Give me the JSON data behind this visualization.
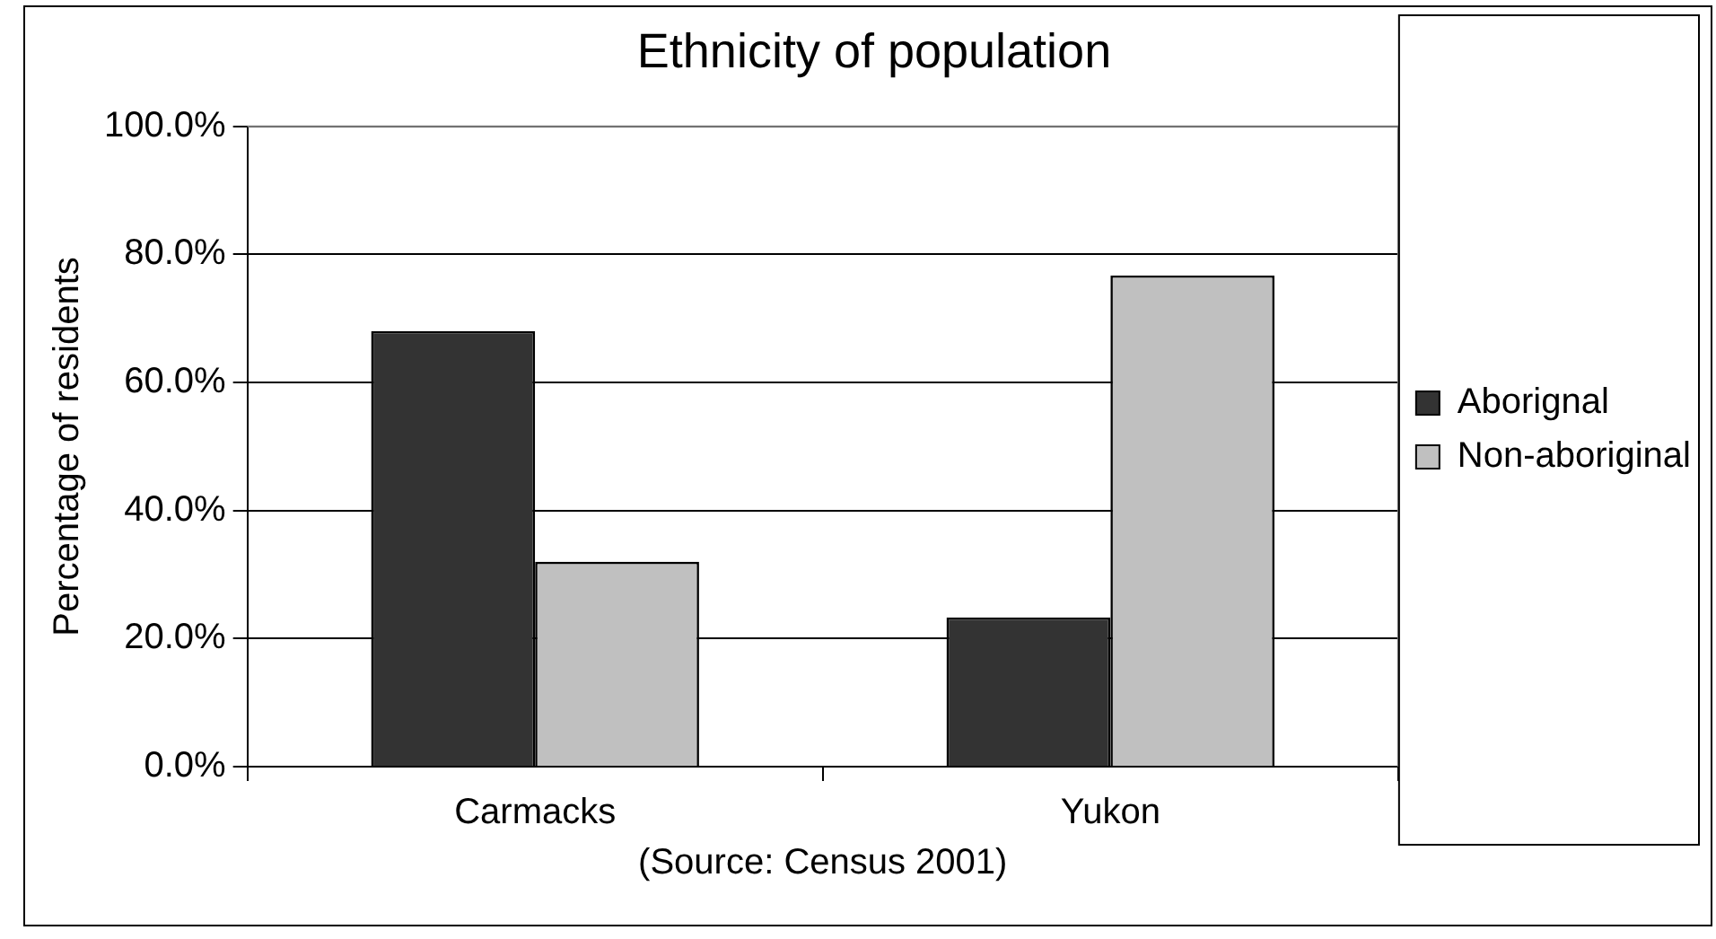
{
  "chart_data": {
    "type": "bar",
    "title": "Ethnicity of population",
    "ylabel": "Percentage of residents",
    "categories": [
      "Carmacks",
      "Yukon"
    ],
    "series": [
      {
        "name": "Aborignal",
        "color": "#333333",
        "values": [
          68,
          23.3
        ]
      },
      {
        "name": "Non-aboriginal",
        "color": "#c0c0c0",
        "values": [
          32,
          76.7
        ]
      }
    ],
    "ylim": [
      0,
      100
    ],
    "yticks": [
      {
        "value": 0,
        "label": "0.0%"
      },
      {
        "value": 20,
        "label": "20.0%"
      },
      {
        "value": 40,
        "label": "40.0%"
      },
      {
        "value": 60,
        "label": "60.0%"
      },
      {
        "value": 80,
        "label": "80.0%"
      },
      {
        "value": 100,
        "label": "100.0%"
      }
    ],
    "grid": "y",
    "legend": "right",
    "annotations": [
      "(Source: Census 2001)"
    ]
  }
}
